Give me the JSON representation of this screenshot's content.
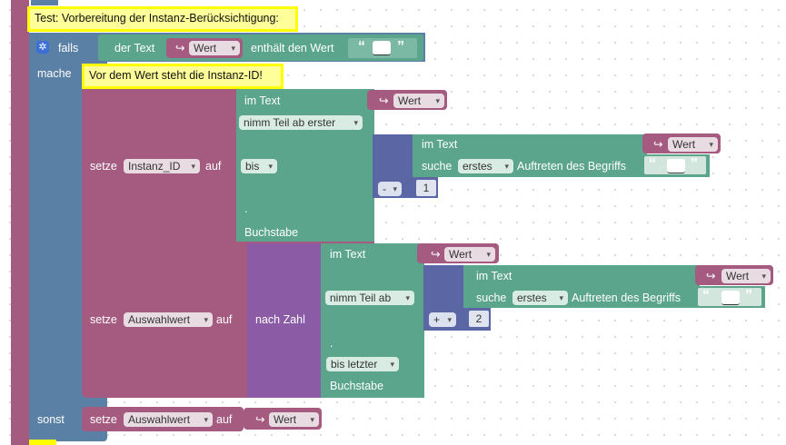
{
  "comments": {
    "top": "Test: Vorbereitung der Instanz-Berücksichtigung:",
    "inner": "Vor dem Wert steht die Instanz-ID!"
  },
  "if_block": {
    "falls": "falls",
    "mache": "mache",
    "sonst": "sonst",
    "settings_icon": "gear-icon"
  },
  "condition": {
    "der_text": "der Text",
    "var": "Wert",
    "contains": "enthält den Wert",
    "open_quote": "“",
    "close_quote": "”"
  },
  "set1": {
    "setze": "setze",
    "var": "Instanz_ID",
    "auf": "auf",
    "im_text": "im Text",
    "text_var": "Wert",
    "mode": "nimm Teil ab erster",
    "bis": "bis",
    "dot": ".",
    "buchstabe": "Buchstabe",
    "op": "-",
    "num": "1",
    "search_im_text": "im Text",
    "search_var": "Wert",
    "suche": "suche",
    "occurrence": "erstes",
    "auftreten": "Auftreten des Begriffs",
    "open_quote": "“",
    "close_quote": "”"
  },
  "set2": {
    "setze": "setze",
    "var": "Auswahlwert",
    "auf": "auf",
    "nach_zahl": "nach Zahl",
    "im_text": "im Text",
    "text_var": "Wert",
    "mode": "nimm Teil ab",
    "dot": ".",
    "end_mode": "bis letzter",
    "buchstabe": "Buchstabe",
    "op": "+",
    "num": "2",
    "search_im_text": "im Text",
    "search_var": "Wert",
    "suche": "suche",
    "occurrence": "erstes",
    "auftreten": "Auftreten des Begriffs",
    "open_quote": "“",
    "close_quote": "”"
  },
  "else_set": {
    "setze": "setze",
    "var": "Auswahlwert",
    "auf": "auf",
    "value_var": "Wert"
  },
  "colors": {
    "control": "#5b80a5",
    "variable": "#a55b80",
    "text": "#5ba58c",
    "math": "#5b67a5",
    "convert": "#8c5ba5",
    "comment": "#ffff99"
  }
}
